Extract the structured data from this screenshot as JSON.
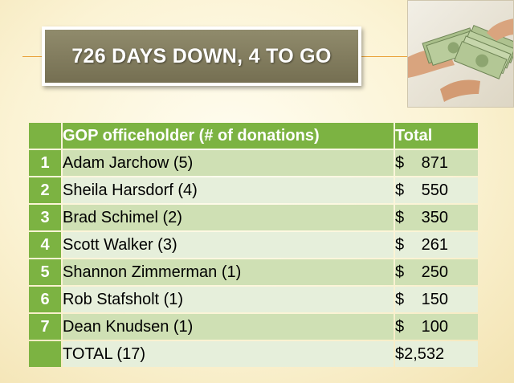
{
  "slide": {
    "title": "726 DAYS DOWN, 4 TO GO"
  },
  "table": {
    "headers": {
      "rank": "",
      "name": "GOP officeholder (# of donations)",
      "total": "Total"
    },
    "rows": [
      {
        "rank": "1",
        "name": "Adam Jarchow (5)",
        "currency": "$",
        "amount": "871"
      },
      {
        "rank": "2",
        "name": "Sheila Harsdorf (4)",
        "currency": "$",
        "amount": "550"
      },
      {
        "rank": "3",
        "name": "Brad Schimel (2)",
        "currency": "$",
        "amount": "350"
      },
      {
        "rank": "4",
        "name": "Scott Walker (3)",
        "currency": "$",
        "amount": "261"
      },
      {
        "rank": "5",
        "name": "Shannon Zimmerman (1)",
        "currency": "$",
        "amount": "250"
      },
      {
        "rank": "6",
        "name": "Rob Stafsholt (1)",
        "currency": "$",
        "amount": "150"
      },
      {
        "rank": "7",
        "name": "Dean Knudsen (1)",
        "currency": "$",
        "amount": "100"
      }
    ],
    "total_row": {
      "label": "TOTAL (17)",
      "amount": "$2,532"
    }
  },
  "colors": {
    "header_green": "#7cb342",
    "row_dark": "#cfe0b4",
    "row_light": "#e6efdb",
    "title_box": "#827c5f",
    "rule": "#e9a23a"
  },
  "icons": {
    "photo": "money-handoff-photo"
  }
}
